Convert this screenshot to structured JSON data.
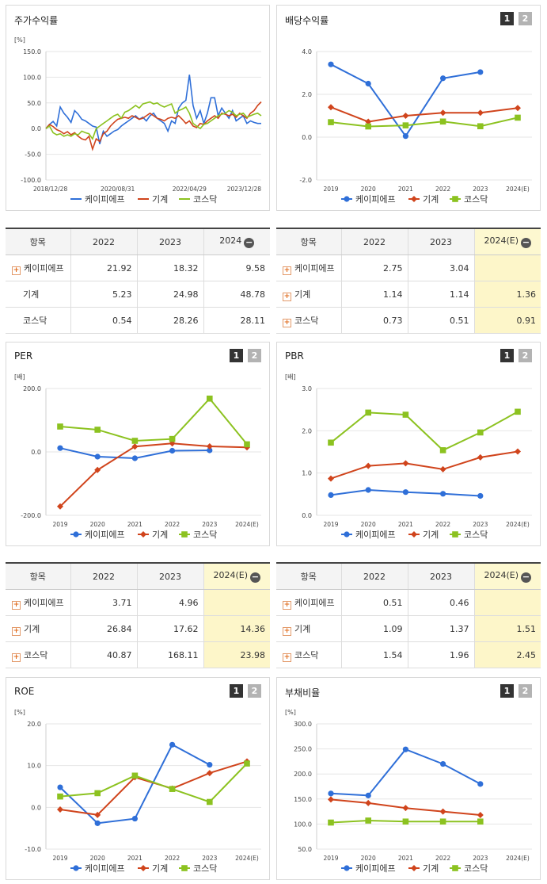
{
  "charts": [
    {
      "id": "stock",
      "title": "주가수익률",
      "pager": false,
      "chart_data": {
        "type": "line",
        "unit": "[%]",
        "ylim": [
          -100,
          150
        ],
        "y_ticks": [
          "150.0",
          "100.0",
          "50.0",
          "0.0",
          "-50.0",
          "-100.0"
        ],
        "x_ticks": [
          "2018/12/28",
          "2020/08/31",
          "2022/04/29",
          "2023/12/28"
        ],
        "series": [
          {
            "name": "케이피에프",
            "color": "#2f6fd8",
            "marker": "none",
            "values": [
              0,
              8,
              14,
              5,
              42,
              30,
              22,
              12,
              35,
              28,
              18,
              15,
              10,
              5,
              3,
              -30,
              -5,
              -15,
              -10,
              -5,
              -2,
              5,
              10,
              15,
              20,
              25,
              18,
              22,
              15,
              25,
              30,
              20,
              15,
              10,
              -5,
              15,
              10,
              40,
              50,
              55,
              105,
              45,
              20,
              35,
              10,
              30,
              60,
              60,
              25,
              40,
              30,
              20,
              35,
              15,
              20,
              25,
              10,
              15,
              12,
              10,
              10
            ]
          },
          {
            "name": "기계",
            "color": "#d0441c",
            "marker": "none",
            "values": [
              0,
              8,
              4,
              -2,
              -5,
              -10,
              -6,
              -12,
              -8,
              -15,
              -20,
              -22,
              -15,
              -40,
              -20,
              -25,
              -10,
              -5,
              5,
              12,
              18,
              20,
              22,
              20,
              25,
              22,
              18,
              20,
              25,
              30,
              25,
              20,
              18,
              15,
              20,
              22,
              20,
              25,
              18,
              10,
              15,
              5,
              2,
              10,
              8,
              15,
              20,
              25,
              20,
              30,
              28,
              25,
              28,
              22,
              30,
              25,
              20,
              30,
              35,
              45,
              52
            ]
          },
          {
            "name": "코스닥",
            "color": "#8cc220",
            "marker": "none",
            "values": [
              0,
              5,
              -8,
              -12,
              -10,
              -15,
              -12,
              -15,
              -10,
              -12,
              -5,
              -8,
              -10,
              -20,
              0,
              5,
              10,
              15,
              20,
              25,
              28,
              20,
              32,
              35,
              40,
              45,
              40,
              48,
              50,
              52,
              48,
              50,
              45,
              42,
              45,
              48,
              30,
              35,
              38,
              42,
              30,
              10,
              5,
              0,
              8,
              10,
              15,
              20,
              25,
              28,
              30,
              35,
              32,
              25,
              28,
              30,
              22,
              25,
              28,
              30,
              25
            ]
          }
        ]
      }
    },
    {
      "id": "dividend",
      "title": "배당수익률",
      "pager": true,
      "chart_data": {
        "type": "line",
        "unit": "",
        "ylim": [
          -2,
          4
        ],
        "y_ticks": [
          "4.0",
          "2.0",
          "0.0",
          "-2.0"
        ],
        "categories": [
          "2019",
          "2020",
          "2021",
          "2022",
          "2023",
          "2024(E)"
        ],
        "series": [
          {
            "name": "케이피에프",
            "color": "#2f6fd8",
            "marker": "circle",
            "values": [
              3.4,
              2.5,
              0.05,
              2.75,
              3.04,
              null
            ]
          },
          {
            "name": "기계",
            "color": "#d0441c",
            "marker": "diamond",
            "values": [
              1.4,
              0.72,
              1.0,
              1.14,
              1.14,
              1.36
            ]
          },
          {
            "name": "코스닥",
            "color": "#8cc220",
            "marker": "square",
            "values": [
              0.7,
              0.5,
              0.55,
              0.73,
              0.51,
              0.91
            ]
          }
        ]
      }
    },
    {
      "id": "per",
      "title": "PER",
      "pager": true,
      "chart_data": {
        "type": "line",
        "unit": "[배]",
        "ylim": [
          -200,
          200
        ],
        "y_ticks": [
          "200.0",
          "0.0",
          "-200.0"
        ],
        "categories": [
          "2019",
          "2020",
          "2021",
          "2022",
          "2023",
          "2024(E)"
        ],
        "series": [
          {
            "name": "케이피에프",
            "color": "#2f6fd8",
            "marker": "circle",
            "values": [
              12,
              -15,
              -20,
              3.71,
              4.96,
              null
            ]
          },
          {
            "name": "기계",
            "color": "#d0441c",
            "marker": "diamond",
            "values": [
              -172,
              -57,
              17,
              26.84,
              17.62,
              14.36
            ]
          },
          {
            "name": "코스닥",
            "color": "#8cc220",
            "marker": "square",
            "values": [
              80,
              70,
              35,
              40.87,
              168.11,
              23.98
            ]
          }
        ]
      }
    },
    {
      "id": "pbr",
      "title": "PBR",
      "pager": true,
      "chart_data": {
        "type": "line",
        "unit": "[배]",
        "ylim": [
          0,
          3
        ],
        "y_ticks": [
          "3.0",
          "2.0",
          "1.0",
          "0.0"
        ],
        "categories": [
          "2019",
          "2020",
          "2021",
          "2022",
          "2023",
          "2024(E)"
        ],
        "series": [
          {
            "name": "케이피에프",
            "color": "#2f6fd8",
            "marker": "circle",
            "values": [
              0.48,
              0.6,
              0.55,
              0.51,
              0.46,
              null
            ]
          },
          {
            "name": "기계",
            "color": "#d0441c",
            "marker": "diamond",
            "values": [
              0.87,
              1.17,
              1.23,
              1.09,
              1.37,
              1.51
            ]
          },
          {
            "name": "코스닥",
            "color": "#8cc220",
            "marker": "square",
            "values": [
              1.72,
              2.43,
              2.38,
              1.54,
              1.96,
              2.45
            ]
          }
        ]
      }
    },
    {
      "id": "roe",
      "title": "ROE",
      "pager": true,
      "chart_data": {
        "type": "line",
        "unit": "[%]",
        "ylim": [
          -10,
          20
        ],
        "y_ticks": [
          "20.0",
          "10.0",
          "0.0",
          "-10.0"
        ],
        "categories": [
          "2019",
          "2020",
          "2021",
          "2022",
          "2023",
          "2024(E)"
        ],
        "series": [
          {
            "name": "케이피에프",
            "color": "#2f6fd8",
            "marker": "circle",
            "values": [
              4.8,
              -3.8,
              -2.7,
              15.0,
              10.2,
              null
            ]
          },
          {
            "name": "기계",
            "color": "#d0441c",
            "marker": "diamond",
            "values": [
              -0.5,
              -1.8,
              7.2,
              4.5,
              8.2,
              11.0
            ]
          },
          {
            "name": "코스닥",
            "color": "#8cc220",
            "marker": "square",
            "values": [
              2.6,
              3.4,
              7.6,
              4.4,
              1.3,
              10.5
            ]
          }
        ]
      }
    },
    {
      "id": "debt",
      "title": "부채비율",
      "pager": true,
      "chart_data": {
        "type": "line",
        "unit": "[%]",
        "ylim": [
          50,
          300
        ],
        "y_ticks": [
          "300.0",
          "250.0",
          "200.0",
          "150.0",
          "100.0",
          "50.0"
        ],
        "categories": [
          "2019",
          "2020",
          "2021",
          "2022",
          "2023",
          "2024(E)"
        ],
        "series": [
          {
            "name": "케이피에프",
            "color": "#2f6fd8",
            "marker": "circle",
            "values": [
              161,
              157,
              249,
              220,
              180,
              null
            ]
          },
          {
            "name": "기계",
            "color": "#d0441c",
            "marker": "diamond",
            "values": [
              149,
              142,
              132,
              125,
              118,
              null
            ]
          },
          {
            "name": "코스닥",
            "color": "#8cc220",
            "marker": "square",
            "values": [
              103,
              107,
              105,
              105,
              105,
              null
            ]
          }
        ]
      }
    }
  ],
  "pager_labels": [
    "1",
    "2"
  ],
  "tables": [
    {
      "id": "stock-table",
      "headers": [
        "항목",
        "2022",
        "2023",
        "2024"
      ],
      "header_minus": true,
      "highlight_last": false,
      "rows": [
        {
          "plus": true,
          "name": "케이피에프",
          "values": [
            "21.92",
            "18.32",
            "9.58"
          ]
        },
        {
          "plus": false,
          "name": "기계",
          "values": [
            "5.23",
            "24.98",
            "48.78"
          ]
        },
        {
          "plus": false,
          "name": "코스닥",
          "values": [
            "0.54",
            "28.26",
            "28.11"
          ]
        }
      ]
    },
    {
      "id": "dividend-table",
      "headers": [
        "항목",
        "2022",
        "2023",
        "2024(E)"
      ],
      "header_minus": true,
      "highlight_last": true,
      "rows": [
        {
          "plus": true,
          "name": "케이피에프",
          "values": [
            "2.75",
            "3.04",
            ""
          ]
        },
        {
          "plus": true,
          "name": "기계",
          "values": [
            "1.14",
            "1.14",
            "1.36"
          ]
        },
        {
          "plus": true,
          "name": "코스닥",
          "values": [
            "0.73",
            "0.51",
            "0.91"
          ]
        }
      ]
    },
    {
      "id": "per-table",
      "headers": [
        "항목",
        "2022",
        "2023",
        "2024(E)"
      ],
      "header_minus": true,
      "highlight_last": true,
      "rows": [
        {
          "plus": true,
          "name": "케이피에프",
          "values": [
            "3.71",
            "4.96",
            ""
          ]
        },
        {
          "plus": true,
          "name": "기계",
          "values": [
            "26.84",
            "17.62",
            "14.36"
          ]
        },
        {
          "plus": true,
          "name": "코스닥",
          "values": [
            "40.87",
            "168.11",
            "23.98"
          ]
        }
      ]
    },
    {
      "id": "pbr-table",
      "headers": [
        "항목",
        "2022",
        "2023",
        "2024(E)"
      ],
      "header_minus": true,
      "highlight_last": true,
      "rows": [
        {
          "plus": true,
          "name": "케이피에프",
          "values": [
            "0.51",
            "0.46",
            ""
          ]
        },
        {
          "plus": true,
          "name": "기계",
          "values": [
            "1.09",
            "1.37",
            "1.51"
          ]
        },
        {
          "plus": true,
          "name": "코스닥",
          "values": [
            "1.54",
            "1.96",
            "2.45"
          ]
        }
      ]
    }
  ],
  "minus_symbol": "−",
  "plus_symbol": "+"
}
